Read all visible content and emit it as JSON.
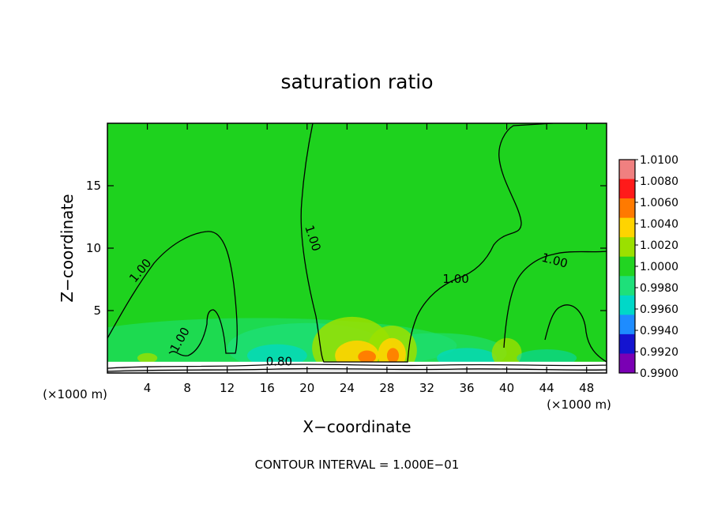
{
  "chart_data": {
    "type": "heatmap",
    "title": "saturation ratio",
    "xlabel": "X−coordinate",
    "ylabel": "Z−coordinate",
    "x_units_left": "(×1000 m)",
    "x_units_right": "(×1000 m)",
    "xlim": [
      0,
      50
    ],
    "ylim": [
      0,
      20
    ],
    "xticks": [
      4,
      8,
      12,
      16,
      20,
      24,
      28,
      32,
      36,
      40,
      44,
      48
    ],
    "yticks": [
      5,
      10,
      15
    ],
    "footer": "CONTOUR INTERVAL = 1.000E−01",
    "colorbar": {
      "levels": [
        "1.0100",
        "1.0080",
        "1.0060",
        "1.0040",
        "1.0020",
        "1.0000",
        "0.9980",
        "0.9960",
        "0.9940",
        "0.9920",
        "0.9900"
      ],
      "colors": [
        "#f08080",
        "#ff1a1a",
        "#ff7a00",
        "#ffd400",
        "#9be000",
        "#22d422",
        "#1ee07a",
        "#00d8c8",
        "#1e8cff",
        "#1414d0",
        "#7a00b4"
      ]
    },
    "contour_labels": [
      {
        "text": "1.00",
        "x": 3.6,
        "z": 8.0,
        "rotate": -50
      },
      {
        "text": "1.00",
        "x": 7.6,
        "z": 2.5,
        "rotate": -60
      },
      {
        "text": "1.00",
        "x": 20.2,
        "z": 10.7,
        "rotate": 72
      },
      {
        "text": "1.00",
        "x": 34.9,
        "z": 7.2,
        "rotate": 0
      },
      {
        "text": "1.00",
        "x": 44.7,
        "z": 8.7,
        "rotate": 15
      },
      {
        "text": "0.80",
        "x": 17.2,
        "z": 0.6,
        "rotate": 0
      }
    ]
  }
}
